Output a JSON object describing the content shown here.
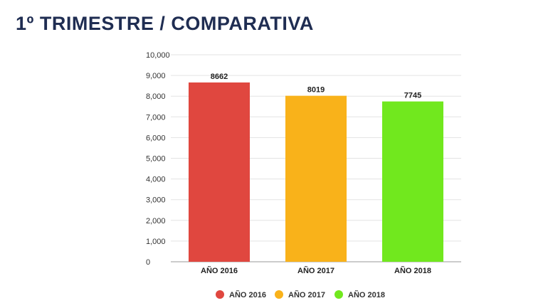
{
  "header": {
    "title": "1º TRIMESTRE / COMPARATIVA"
  },
  "chart_data": {
    "type": "bar",
    "categories": [
      "AÑO 2016",
      "AÑO 2017",
      "AÑO 2018"
    ],
    "values": [
      8662,
      8019,
      7745
    ],
    "data_labels": [
      "8662",
      "8019",
      "7745"
    ],
    "colors": [
      "#e0473f",
      "#f9b21a",
      "#71e81e"
    ],
    "ylim": [
      0,
      10000
    ],
    "yticks": [
      0,
      1000,
      2000,
      3000,
      4000,
      5000,
      6000,
      7000,
      8000,
      9000,
      10000
    ],
    "ytick_labels": [
      "0",
      "1,000",
      "2,000",
      "3,000",
      "4,000",
      "5,000",
      "6,000",
      "7,000",
      "8,000",
      "9,000",
      "10,000"
    ],
    "legend": [
      "AÑO 2016",
      "AÑO 2017",
      "AÑO 2018"
    ],
    "legend_position": "bottom",
    "grid": true,
    "title": "",
    "xlabel": "",
    "ylabel": ""
  }
}
